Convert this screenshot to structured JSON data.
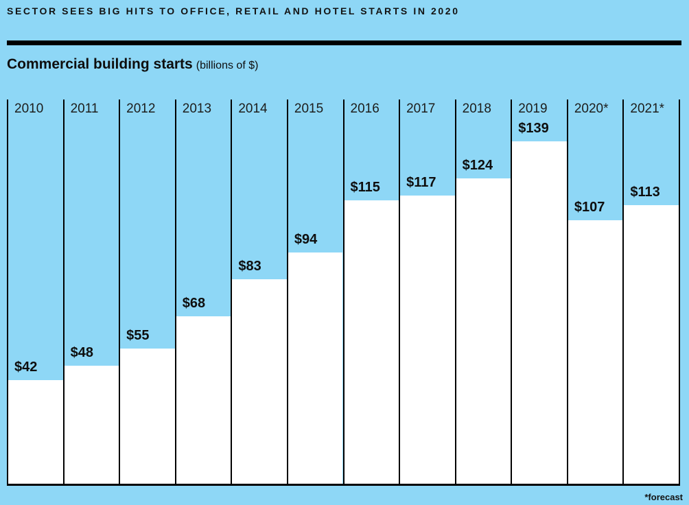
{
  "page": {
    "background_color": "#8ED7F6",
    "bar_color": "#FFFFFF",
    "line_color": "#000000",
    "text_color": "#0E0E0E"
  },
  "header": {
    "kicker": "SECTOR SEES BIG HITS TO OFFICE, RETAIL AND HOTEL STARTS IN 2020"
  },
  "chart": {
    "title": "Commercial building starts",
    "subtitle": "(billions of $)"
  },
  "footnote": "*forecast",
  "chart_data": {
    "type": "bar",
    "title": "Commercial building starts",
    "subtitle": "(billions of $)",
    "unit": "billions of $",
    "categories": [
      "2010",
      "2011",
      "2012",
      "2013",
      "2014",
      "2015",
      "2016",
      "2017",
      "2018",
      "2019",
      "2020*",
      "2021*"
    ],
    "values": [
      42,
      48,
      55,
      68,
      83,
      94,
      115,
      117,
      124,
      139,
      107,
      113
    ],
    "value_labels": [
      "$42",
      "$48",
      "$55",
      "$68",
      "$83",
      "$94",
      "$115",
      "$117",
      "$124",
      "$139",
      "$107",
      "$113"
    ],
    "xlabel": "",
    "ylabel": "",
    "ylim": [
      0,
      156
    ],
    "grid": false,
    "legend": false,
    "bar_color": "#FFFFFF",
    "background_color": "#8ED7F6",
    "annotations": [
      "*forecast"
    ],
    "notes": "2020 and 2021 values are forecasts (marked with asterisk); white bars on sky-blue background, black column dividers, value label above each bar top"
  }
}
